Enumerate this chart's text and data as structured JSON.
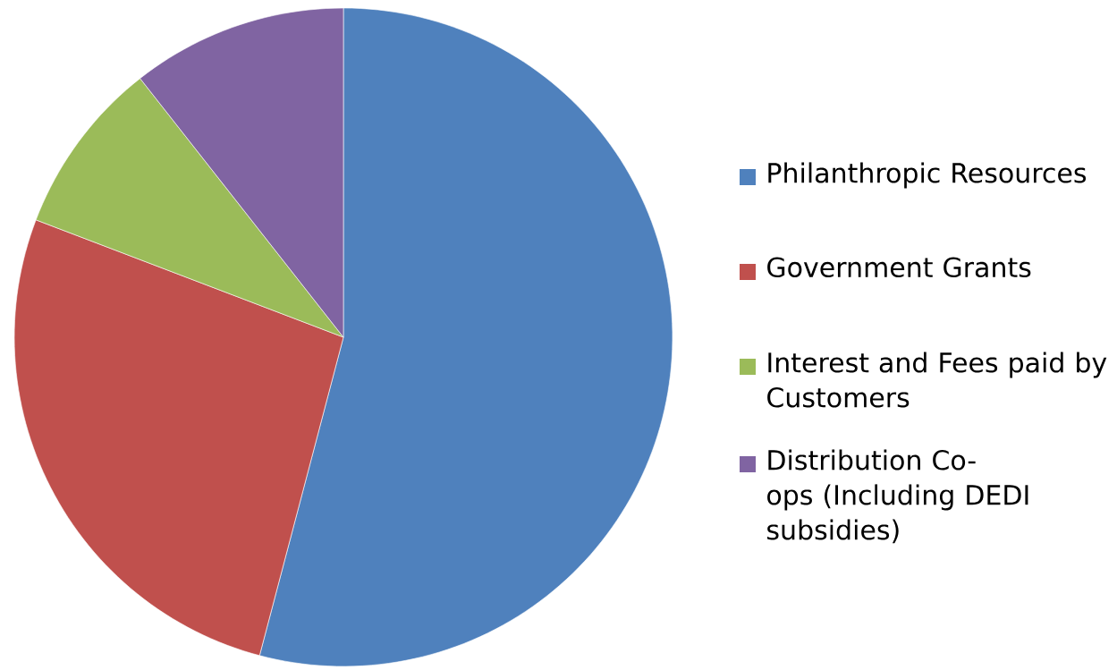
{
  "chart_data": {
    "type": "pie",
    "categories": [
      "Philanthropic Resources",
      "Government Grants",
      "Interest and Fees paid by Customers",
      "Distribution Co-ops (Including DEDI subsidies)"
    ],
    "values": [
      54.1,
      26.7,
      8.6,
      10.6
    ],
    "colors": [
      "#4f81bd",
      "#c0504d",
      "#9bbb59",
      "#8064a2"
    ],
    "legend": "right"
  }
}
